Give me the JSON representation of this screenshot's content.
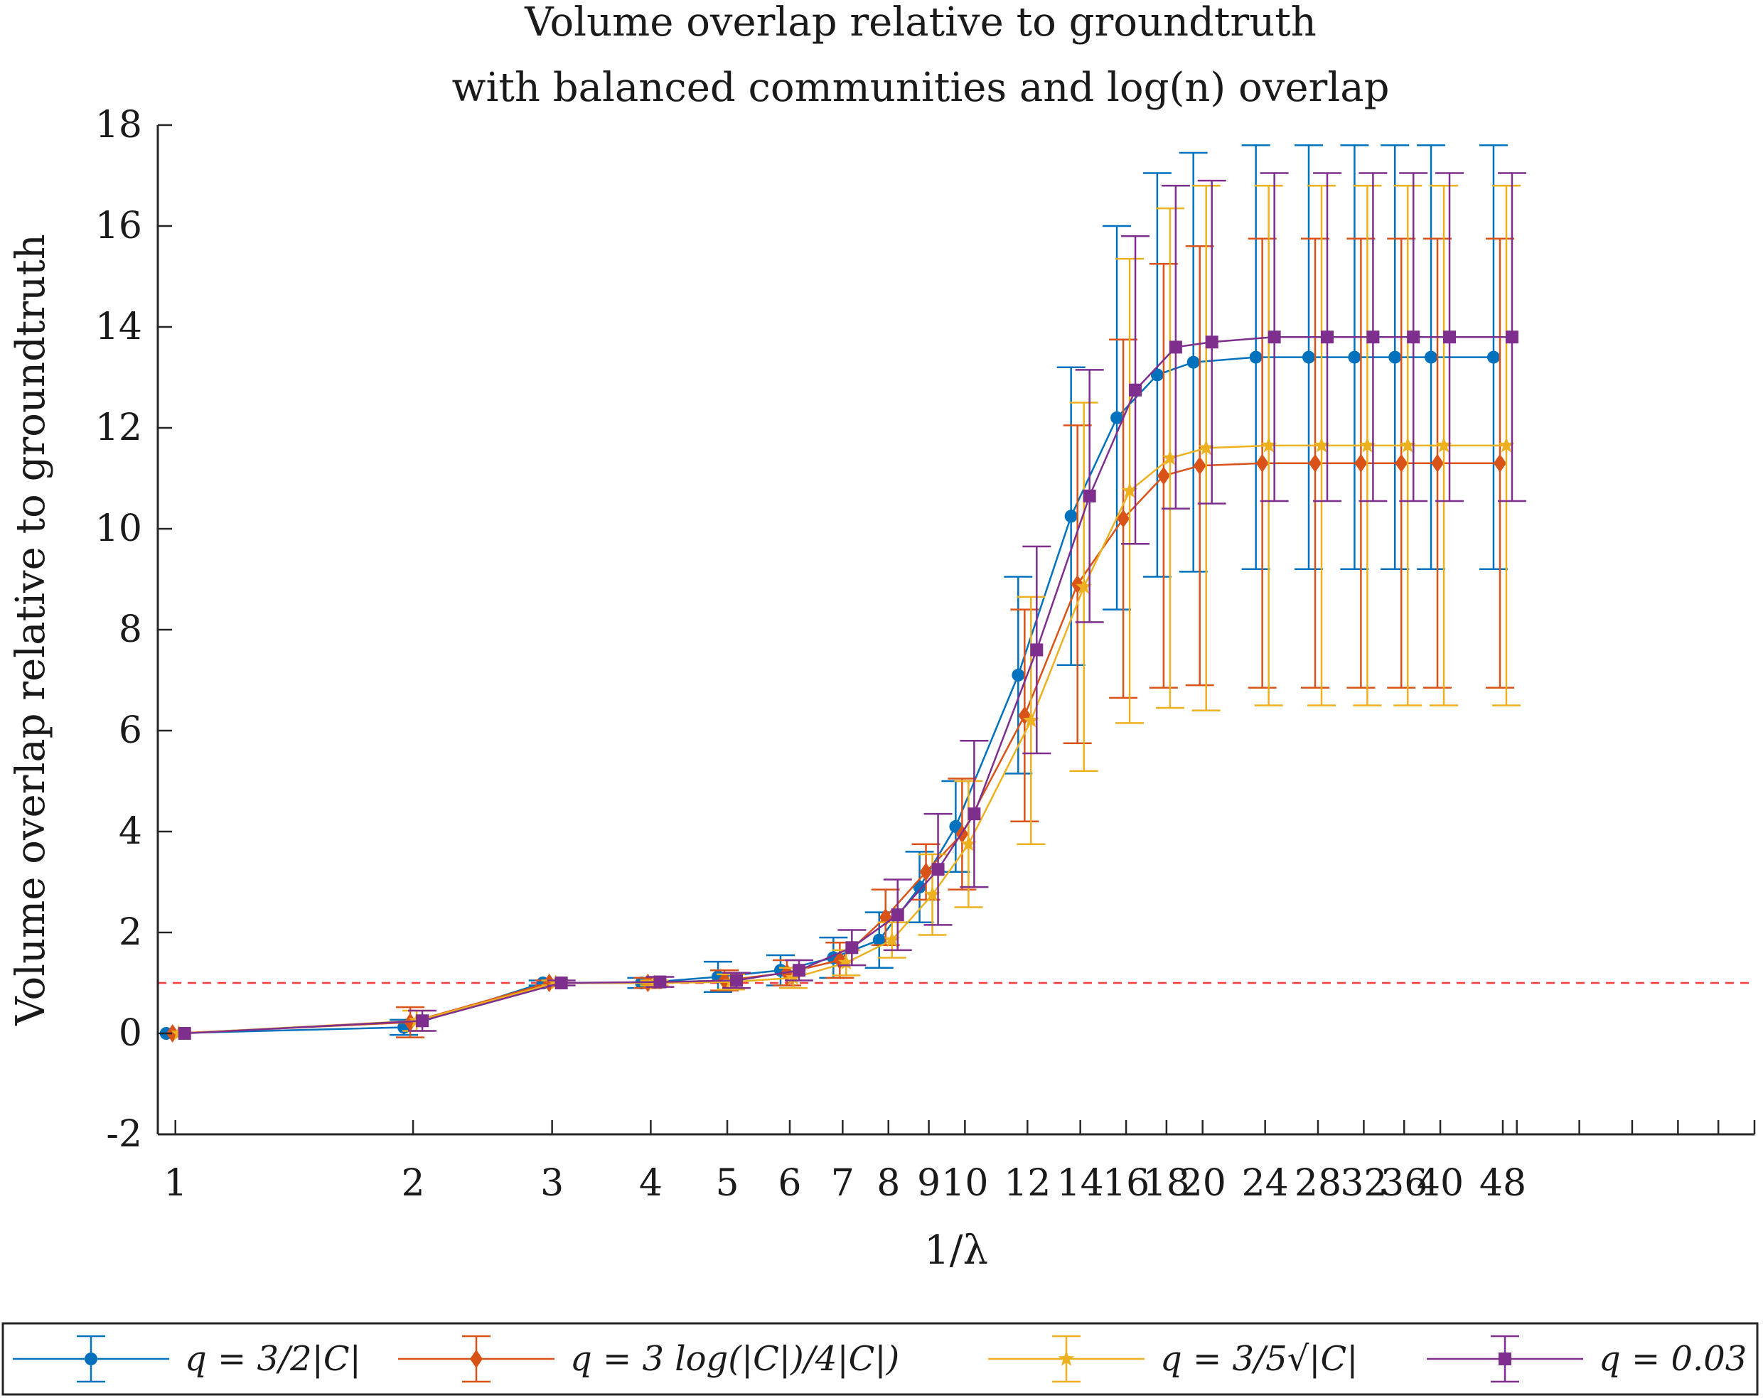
{
  "chart_data": {
    "type": "line",
    "title": [
      "Volume overlap relative to groundtruth",
      "with balanced communities and log(n) overlap"
    ],
    "xlabel": "1/λ",
    "ylabel": "Volume overlap relative to groundtruth",
    "xscale": "log",
    "xlim": [
      0.95,
      100
    ],
    "ylim": [
      -2,
      18
    ],
    "yticks": [
      -2,
      0,
      2,
      4,
      6,
      8,
      10,
      12,
      14,
      16,
      18
    ],
    "ytick_labels": [
      "-2",
      "0",
      "2",
      "4",
      "6",
      "8",
      "10",
      "12",
      "14",
      "16",
      "18"
    ],
    "xticks": [
      1,
      2,
      3,
      4,
      5,
      6,
      7,
      8,
      9,
      10,
      12,
      14,
      16,
      18,
      20,
      24,
      28,
      32,
      36,
      40,
      48
    ],
    "xtick_labels": [
      "1",
      "2",
      "3",
      "4",
      "5",
      "6",
      "7",
      "8",
      "9",
      "10",
      "12",
      "14",
      "16",
      "18",
      "20",
      "24",
      "28",
      "32",
      "36",
      "40",
      "48"
    ],
    "reference_line": {
      "y": 1,
      "color": "#ff3b3b",
      "style": "dashed"
    },
    "legend_position": "bottom",
    "series": [
      {
        "name": "q = 3/2|C|",
        "color": "#0072BD",
        "marker": "circle",
        "x": [
          1,
          2,
          3,
          4,
          5,
          6,
          7,
          8,
          9,
          10,
          12,
          14,
          16,
          18,
          20,
          24,
          28,
          32,
          36,
          40,
          48
        ],
        "values": [
          0,
          0.12,
          1.0,
          1.0,
          1.12,
          1.25,
          1.5,
          1.85,
          2.9,
          4.1,
          7.1,
          10.25,
          12.2,
          13.05,
          13.3,
          13.4,
          13.4,
          13.4,
          13.4,
          13.4,
          13.4
        ],
        "err": [
          0,
          0.15,
          0.05,
          0.1,
          0.3,
          0.3,
          0.4,
          0.55,
          0.7,
          0.9,
          1.95,
          2.95,
          3.8,
          4.0,
          4.15,
          4.2,
          4.2,
          4.2,
          4.2,
          4.2,
          4.2
        ]
      },
      {
        "name": "q = 3 log(|C|)/4|C|)",
        "color": "#D95319",
        "marker": "diamond",
        "x": [
          1,
          2,
          3,
          4,
          5,
          6,
          7,
          8,
          9,
          10,
          12,
          14,
          16,
          18,
          20,
          24,
          28,
          32,
          36,
          40,
          48
        ],
        "values": [
          0,
          0.22,
          1.0,
          1.0,
          1.05,
          1.2,
          1.45,
          2.3,
          3.2,
          3.95,
          6.3,
          8.9,
          10.2,
          11.05,
          11.25,
          11.3,
          11.3,
          11.3,
          11.3,
          11.3,
          11.3
        ],
        "err": [
          0,
          0.3,
          0.05,
          0.1,
          0.2,
          0.25,
          0.35,
          0.55,
          0.55,
          1.1,
          2.1,
          3.15,
          3.55,
          4.2,
          4.35,
          4.45,
          4.45,
          4.45,
          4.45,
          4.45,
          4.45
        ]
      },
      {
        "name": "q = 3/5√|C|",
        "color": "#EDB120",
        "marker": "pentagram",
        "x": [
          1,
          2,
          3,
          4,
          5,
          6,
          7,
          8,
          9,
          10,
          12,
          14,
          16,
          18,
          20,
          24,
          28,
          32,
          36,
          40,
          48
        ],
        "values": [
          0,
          0.25,
          1.0,
          1.0,
          1.02,
          1.1,
          1.4,
          1.85,
          2.75,
          3.75,
          6.2,
          8.85,
          10.75,
          11.4,
          11.6,
          11.65,
          11.65,
          11.65,
          11.65,
          11.65,
          11.65
        ],
        "err": [
          0,
          0.2,
          0.05,
          0.05,
          0.15,
          0.2,
          0.25,
          0.35,
          0.8,
          1.25,
          2.45,
          3.65,
          4.6,
          4.95,
          5.2,
          5.15,
          5.15,
          5.15,
          5.15,
          5.15,
          5.15
        ]
      },
      {
        "name": "q = 0.03",
        "color": "#7E2F8E",
        "marker": "square",
        "x": [
          1,
          2,
          3,
          4,
          5,
          6,
          7,
          8,
          9,
          10,
          12,
          14,
          16,
          18,
          20,
          24,
          28,
          32,
          36,
          40,
          48
        ],
        "values": [
          0,
          0.25,
          1.0,
          1.02,
          1.05,
          1.25,
          1.7,
          2.35,
          3.25,
          4.35,
          7.6,
          10.65,
          12.75,
          13.6,
          13.7,
          13.8,
          13.8,
          13.8,
          13.8,
          13.8,
          13.8
        ],
        "err": [
          0,
          0.2,
          0.05,
          0.1,
          0.15,
          0.2,
          0.35,
          0.7,
          1.1,
          1.45,
          2.05,
          2.5,
          3.05,
          3.2,
          3.2,
          3.25,
          3.25,
          3.25,
          3.25,
          3.25,
          3.25
        ]
      }
    ]
  },
  "legend": {
    "entries": [
      {
        "prefix": "q",
        "rest": " = 3/2|C|"
      },
      {
        "prefix": "q",
        "rest": " = 3 log(|C|)/4|C|)"
      },
      {
        "prefix": "q",
        "rest": " = 3/5√|C|"
      },
      {
        "prefix": "q",
        "rest": " = 0.03"
      }
    ]
  }
}
